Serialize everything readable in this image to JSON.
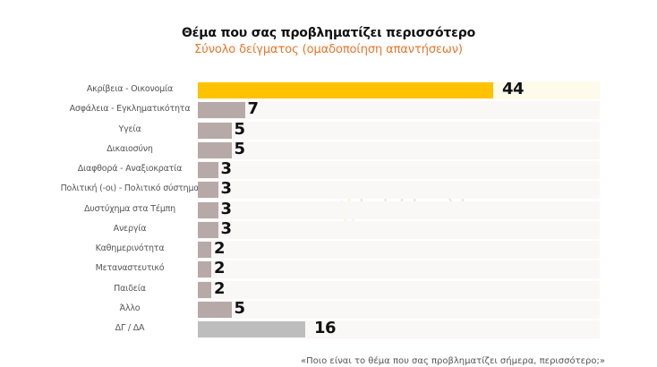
{
  "header": {
    "title": "Θέμα που σας προβληματίζει περισσότερο",
    "subtitle": "Σύνολο δείγματος (ομαδοποίηση απαντήσεων)"
  },
  "watermark": {
    "brand": "PULSE",
    "tagline": "RESEARCH & CONSULTING"
  },
  "footer": {
    "question": "«Ποιο είναι το θέμα που σας προβληματίζει σήμερα, περισσότερο;»"
  },
  "colors": {
    "highlight": "#FFC200",
    "default": "#B8A9A9",
    "no_answer": "#BDBDBD",
    "subtitle": "#E8762A"
  },
  "chart_data": {
    "type": "bar",
    "orientation": "horizontal",
    "title": "Θέμα που σας προβληματίζει περισσότερο",
    "subtitle": "Σύνολο δείγματος (ομαδοποίηση απαντήσεων)",
    "xlabel": "",
    "ylabel": "",
    "unit": "%",
    "grid": false,
    "legend": null,
    "categories": [
      "Ακρίβεια - Οικονομία",
      "Ασφάλεια - Εγκληματικότητα",
      "Υγεία",
      "Δικαιοσύνη",
      "Διαφθορά - Αναξιοκρατία",
      "Πολιτική (-οι) - Πολιτικό σύστημα",
      "Δυστύχημα στα Τέμπη",
      "Ανεργία",
      "Καθημερινότητα",
      "Μεταναστευτικό",
      "Παιδεία",
      "Άλλο",
      "ΔΓ / ΔΑ"
    ],
    "values": [
      44,
      7,
      5,
      5,
      3,
      3,
      3,
      3,
      2,
      2,
      2,
      5,
      16
    ],
    "xlim": [
      0,
      44
    ]
  }
}
